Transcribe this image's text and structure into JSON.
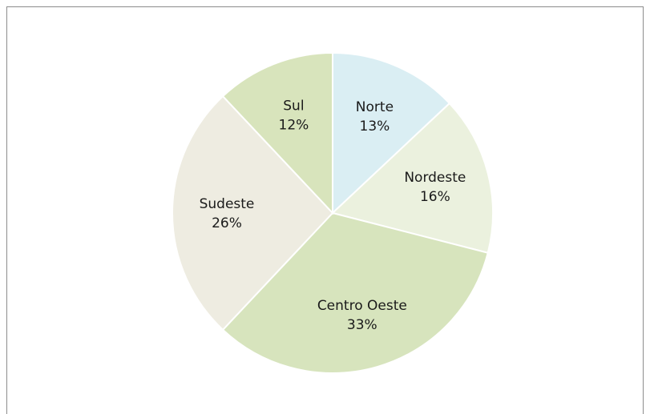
{
  "chart_data": {
    "type": "pie",
    "categories": [
      "Norte",
      "Nordeste",
      "Centro Oeste",
      "Sudeste",
      "Sul"
    ],
    "values": [
      13,
      16,
      33,
      26,
      12
    ],
    "value_labels": [
      "13%",
      "16%",
      "33%",
      "26%",
      "12%"
    ],
    "colors": [
      "#daeef3",
      "#ebf1de",
      "#d7e4bd",
      "#eeece1",
      "#d8e4bc"
    ]
  }
}
